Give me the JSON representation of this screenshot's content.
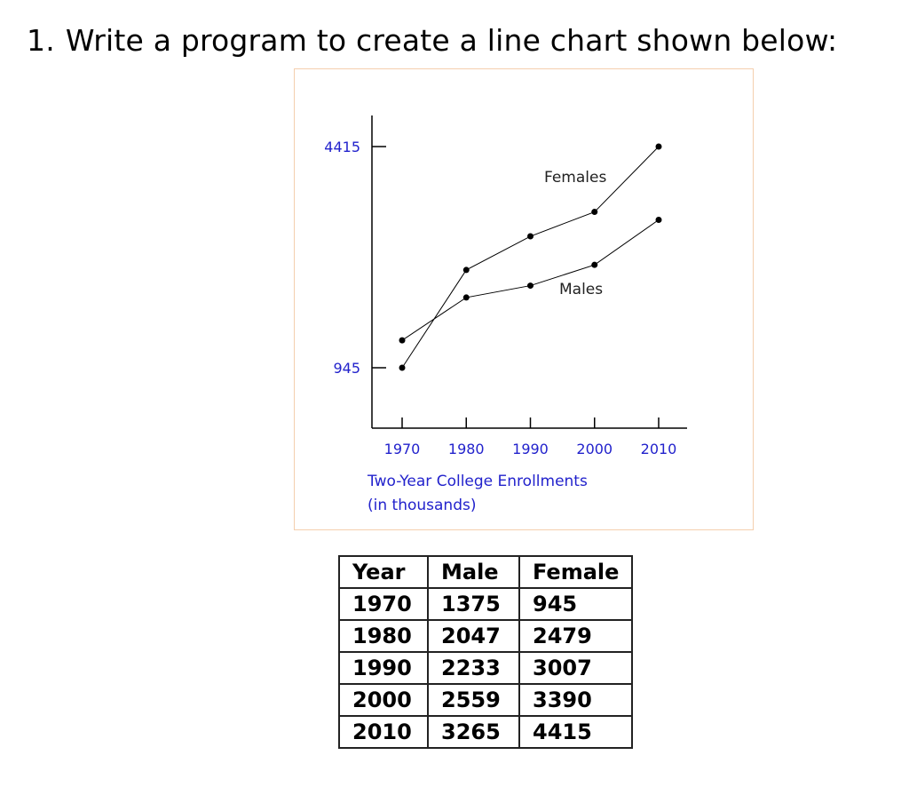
{
  "heading": {
    "number": "1.",
    "text": "Write a program to create a line chart shown below:"
  },
  "chart_data": {
    "type": "line",
    "x": [
      1970,
      1980,
      1990,
      2000,
      2010
    ],
    "series": [
      {
        "name": "Females",
        "values": [
          945,
          2479,
          3007,
          3390,
          4415
        ]
      },
      {
        "name": "Males",
        "values": [
          1375,
          2047,
          2233,
          2559,
          3265
        ]
      }
    ],
    "y_ticks": [
      945,
      4415
    ],
    "x_ticks": [
      "1970",
      "1980",
      "1990",
      "2000",
      "2010"
    ],
    "caption_line1": "Two-Year College Enrollments",
    "caption_line2": "(in thousands)",
    "ylim": [
      945,
      4415
    ],
    "grid": false,
    "tick_color": "#2222cc"
  },
  "table": {
    "headers": [
      "Year",
      "Male",
      "Female"
    ],
    "rows": [
      [
        "1970",
        "1375",
        "945"
      ],
      [
        "1980",
        "2047",
        "2479"
      ],
      [
        "1990",
        "2233",
        "3007"
      ],
      [
        "2000",
        "2559",
        "3390"
      ],
      [
        "2010",
        "3265",
        "4415"
      ]
    ]
  }
}
